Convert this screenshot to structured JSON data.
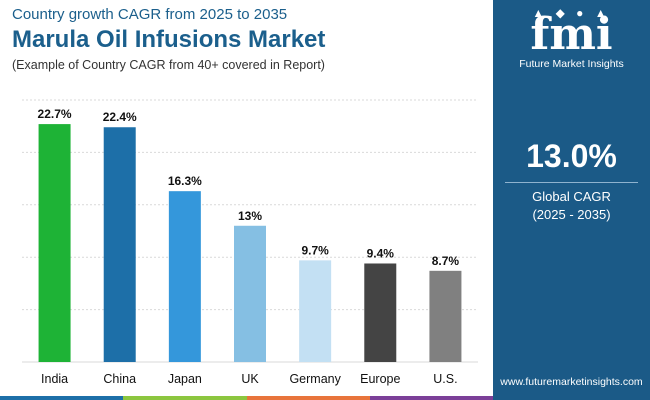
{
  "header": {
    "subtitle_top": "Country growth CAGR from 2025 to 2035",
    "title": "Marula Oil Infusions Market",
    "note": "(Example of Country CAGR from 40+ covered in Report)"
  },
  "panel": {
    "logo_icons": "▲ ◆ ● ▲",
    "logo_text": "fmi",
    "logo_tagline": "Future Market Insights",
    "cagr_value": "13.0%",
    "cagr_label": "Global CAGR",
    "cagr_period": "(2025 - 2035)",
    "website": "www.futuremarketinsights.com",
    "bg_color": "#1b5a87"
  },
  "chart_data": {
    "type": "bar",
    "categories": [
      "India",
      "China",
      "Japan",
      "UK",
      "Germany",
      "Europe",
      "U.S."
    ],
    "values": [
      22.7,
      22.4,
      16.3,
      13,
      9.7,
      9.4,
      8.7
    ],
    "value_labels": [
      "22.7%",
      "22.4%",
      "16.3%",
      "13%",
      "9.7%",
      "9.4%",
      "8.7%"
    ],
    "colors": [
      "#1eb336",
      "#1d6fa8",
      "#3497db",
      "#85bfe3",
      "#c3e0f3",
      "#444444",
      "#808080"
    ],
    "title": "Marula Oil Infusions Market",
    "xlabel": "",
    "ylabel": "",
    "ylim": [
      0,
      25
    ],
    "grid": true
  },
  "footer_stripes": [
    "#1d6fa8",
    "#8cc63f",
    "#e8743b",
    "#7b3f98"
  ]
}
